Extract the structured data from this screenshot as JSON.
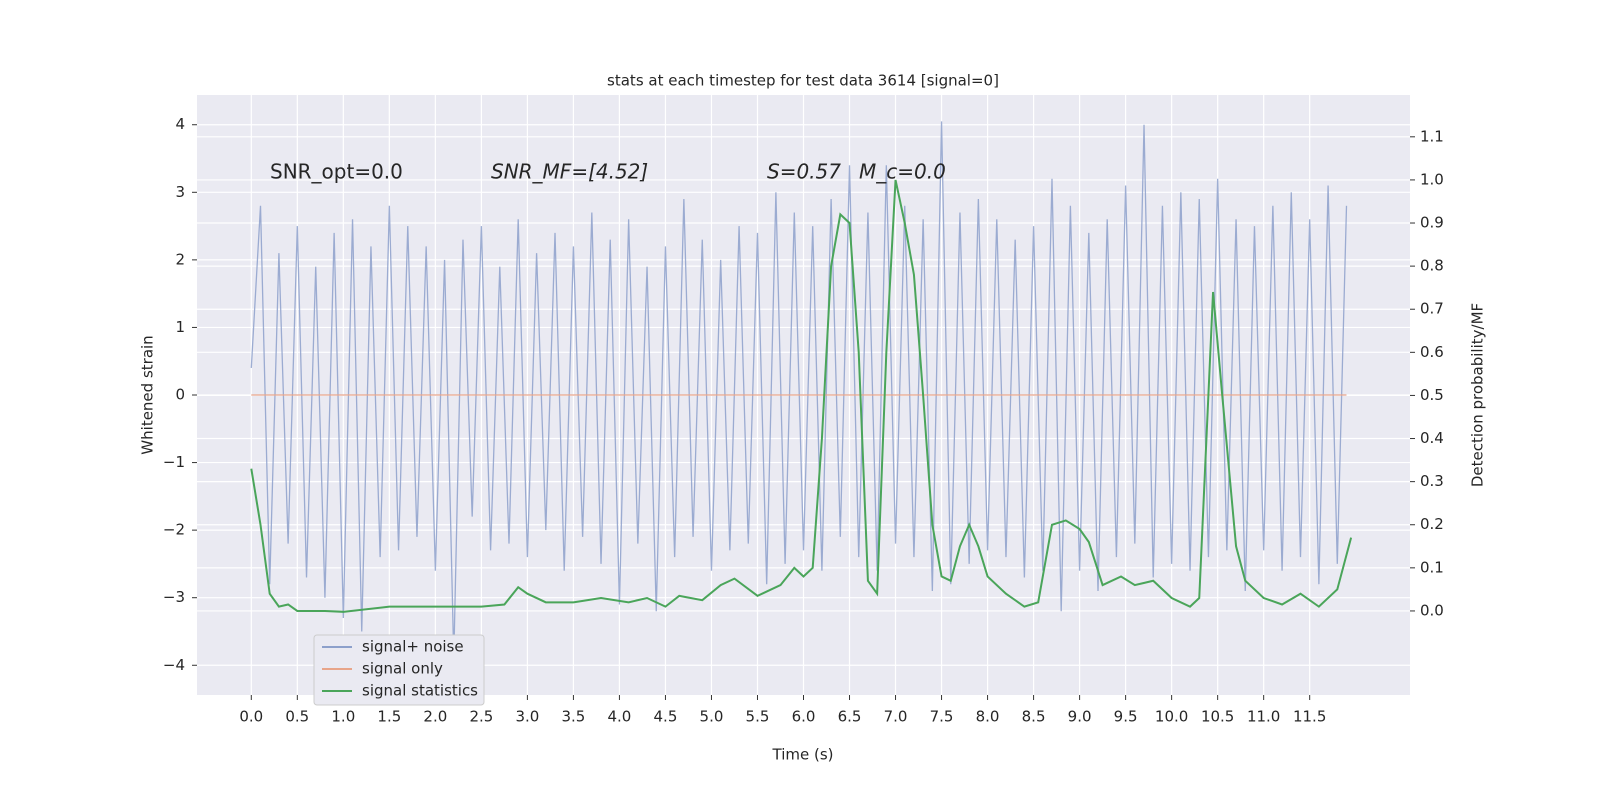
{
  "chart_data": {
    "type": "line",
    "title": "stats at each timestep for test data 3614 [signal=0]",
    "x_label": "Time (s)",
    "y_label": "Whitened strain",
    "y2_label": "Detection probability/MF",
    "annotations": [
      "SNR_opt=0.0",
      "SNR_MF=[4.52]",
      "S=0.57",
      "M_c=0.0"
    ],
    "xlim": [
      -0.59,
      12.59
    ],
    "ylim": [
      -4.44,
      4.44
    ],
    "y2lim": [
      -0.195,
      1.197
    ],
    "xticks": [
      {
        "value": 0,
        "label": "0.0"
      },
      0.5,
      {
        "value": 1,
        "label": "1.0"
      },
      1.5,
      {
        "value": 2,
        "label": "2.0"
      },
      2.5,
      {
        "value": 3,
        "label": "3.0"
      },
      3.5,
      {
        "value": 4,
        "label": "4.0"
      },
      4.5,
      {
        "value": 5,
        "label": "5.0"
      },
      5.5,
      {
        "value": 6,
        "label": "6.0"
      },
      6.5,
      {
        "value": 7,
        "label": "7.0"
      },
      7.5,
      {
        "value": 8,
        "label": "8.0"
      },
      8.5,
      {
        "value": 9,
        "label": "9.0"
      },
      9.5,
      {
        "value": 10,
        "label": "10.0"
      },
      10.5,
      {
        "value": 11,
        "label": "11.0"
      },
      11.5
    ],
    "yticks": [
      {
        "value": -4,
        "label": "−4"
      },
      {
        "value": -3,
        "label": "−3"
      },
      {
        "value": -2,
        "label": "−2"
      },
      {
        "value": -1,
        "label": "−1"
      },
      0,
      1,
      2,
      3,
      4
    ],
    "y2ticks": [
      {
        "value": 0,
        "label": "0.0"
      },
      0.1,
      0.2,
      0.3,
      0.4,
      0.5,
      0.6,
      0.7,
      0.8,
      0.9,
      {
        "value": 1,
        "label": "1.0"
      },
      1.1
    ],
    "grid": true,
    "legend": "lower left",
    "series": [
      {
        "name": "signal+ noise",
        "color": "#8da0cb",
        "x": [
          0,
          0.1,
          0.2,
          0.3,
          0.4,
          0.5,
          0.6,
          0.7,
          0.8,
          0.9,
          1,
          1.1,
          1.2,
          1.3,
          1.4,
          1.5,
          1.6,
          1.7,
          1.8,
          1.9,
          2,
          2.1,
          2.2,
          2.3,
          2.4,
          2.5,
          2.6,
          2.7,
          2.8,
          2.9,
          3,
          3.1,
          3.2,
          3.3,
          3.4,
          3.5,
          3.6,
          3.7,
          3.8,
          3.9,
          4,
          4.1,
          4.2,
          4.3,
          4.4,
          4.5,
          4.6,
          4.7,
          4.8,
          4.9,
          5,
          5.1,
          5.2,
          5.3,
          5.4,
          5.5,
          5.6,
          5.7,
          5.8,
          5.9,
          6,
          6.1,
          6.2,
          6.3,
          6.4,
          6.5,
          6.6,
          6.7,
          6.8,
          6.9,
          7,
          7.1,
          7.2,
          7.3,
          7.4,
          7.5,
          7.6,
          7.7,
          7.8,
          7.9,
          8,
          8.1,
          8.2,
          8.3,
          8.4,
          8.5,
          8.6,
          8.7,
          8.8,
          8.9,
          9,
          9.1,
          9.2,
          9.3,
          9.4,
          9.5,
          9.6,
          9.7,
          9.8,
          9.9,
          10,
          10.1,
          10.2,
          10.3,
          10.4,
          10.5,
          10.6,
          10.7,
          10.8,
          10.9,
          11,
          11.1,
          11.2,
          11.3,
          11.4,
          11.5,
          11.6,
          11.7,
          11.8,
          11.9
        ],
        "values": [
          0.4,
          2.8,
          -2.8,
          2.1,
          -2.2,
          2.5,
          -2.7,
          1.9,
          -3.0,
          2.4,
          -3.3,
          2.6,
          -3.5,
          2.2,
          -2.4,
          2.8,
          -2.3,
          2.5,
          -2.1,
          2.2,
          -2.6,
          2.0,
          -3.9,
          2.3,
          -1.8,
          2.5,
          -2.3,
          1.9,
          -2.2,
          2.6,
          -2.4,
          2.1,
          -2.0,
          2.4,
          -2.6,
          2.2,
          -2.1,
          2.7,
          -2.5,
          2.3,
          -3.1,
          2.6,
          -2.2,
          1.9,
          -3.2,
          2.2,
          -2.4,
          2.9,
          -2.1,
          2.3,
          -2.6,
          2.0,
          -2.3,
          2.5,
          -2.2,
          2.4,
          -2.8,
          3.0,
          -2.5,
          2.7,
          -2.3,
          2.5,
          -2.6,
          2.9,
          -2.1,
          3.4,
          -2.4,
          2.7,
          -2.6,
          3.4,
          -2.2,
          2.8,
          -2.4,
          2.6,
          -2.9,
          4.05,
          -2.8,
          2.7,
          -2.5,
          2.9,
          -2.3,
          2.6,
          -2.4,
          2.3,
          -2.7,
          2.5,
          -2.6,
          3.2,
          -3.2,
          2.8,
          -2.6,
          2.4,
          -2.9,
          2.6,
          -2.4,
          3.1,
          -2.2,
          4.0,
          -2.7,
          2.8,
          -2.5,
          3.0,
          -2.6,
          2.9,
          -2.4,
          3.2,
          -2.3,
          2.6,
          -2.9,
          2.5,
          -2.3,
          2.8,
          -2.6,
          3.0,
          -2.4,
          2.6,
          -2.8,
          3.1,
          -2.5,
          2.8
        ]
      },
      {
        "name": "signal only",
        "color": "#e8a58a",
        "x": [
          0,
          11.9
        ],
        "values": [
          0,
          0
        ]
      },
      {
        "name": "signal statistics",
        "color": "#4aa55a",
        "axis": "y2",
        "x": [
          0,
          0.1,
          0.2,
          0.3,
          0.4,
          0.5,
          0.8,
          1.0,
          1.5,
          2.0,
          2.5,
          2.75,
          2.9,
          3.0,
          3.2,
          3.5,
          3.8,
          4.1,
          4.3,
          4.5,
          4.65,
          4.9,
          5.1,
          5.25,
          5.5,
          5.75,
          5.9,
          6.0,
          6.1,
          6.2,
          6.3,
          6.4,
          6.5,
          6.6,
          6.7,
          6.8,
          6.9,
          7.0,
          7.1,
          7.2,
          7.3,
          7.4,
          7.5,
          7.6,
          7.7,
          7.8,
          7.9,
          8.0,
          8.2,
          8.4,
          8.55,
          8.7,
          8.85,
          9.0,
          9.1,
          9.25,
          9.45,
          9.6,
          9.8,
          10.0,
          10.2,
          10.3,
          10.45,
          10.55,
          10.7,
          10.8,
          11.0,
          11.2,
          11.4,
          11.6,
          11.8,
          11.95
        ],
        "values": [
          0.33,
          0.2,
          0.04,
          0.01,
          0.015,
          0.0,
          0.0,
          -0.002,
          0.01,
          0.01,
          0.01,
          0.015,
          0.055,
          0.04,
          0.02,
          0.02,
          0.03,
          0.02,
          0.03,
          0.01,
          0.035,
          0.025,
          0.06,
          0.075,
          0.035,
          0.06,
          0.1,
          0.08,
          0.1,
          0.4,
          0.8,
          0.92,
          0.9,
          0.6,
          0.07,
          0.04,
          0.6,
          1.0,
          0.9,
          0.78,
          0.5,
          0.2,
          0.08,
          0.07,
          0.15,
          0.2,
          0.15,
          0.08,
          0.04,
          0.01,
          0.02,
          0.2,
          0.21,
          0.19,
          0.16,
          0.06,
          0.08,
          0.06,
          0.07,
          0.03,
          0.01,
          0.03,
          0.74,
          0.5,
          0.15,
          0.07,
          0.03,
          0.015,
          0.04,
          0.01,
          0.05,
          0.17
        ]
      }
    ]
  }
}
